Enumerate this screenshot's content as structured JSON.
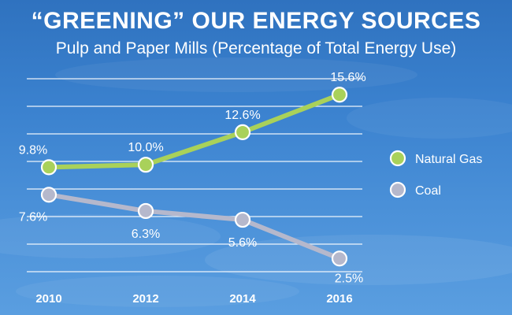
{
  "title": "“GREENING” OUR ENERGY SOURCES",
  "subtitle": "Pulp and Paper Mills  (Percentage of Total Energy Use)",
  "colors": {
    "natural_gas": "#a9d15a",
    "coal": "#b5b8cc",
    "grid": "#ffffff"
  },
  "chart_data": {
    "type": "line",
    "title": "“GREENING” OUR ENERGY SOURCES",
    "subtitle": "Pulp and Paper Mills  (Percentage of Total Energy Use)",
    "x": [
      "2010",
      "2012",
      "2014",
      "2016"
    ],
    "ylim": [
      0,
      17
    ],
    "grid": true,
    "legend_position": "right",
    "series": [
      {
        "name": "Natural Gas",
        "values": [
          9.8,
          10.0,
          12.6,
          15.6
        ],
        "labels": [
          "9.8%",
          "10.0%",
          "12.6%",
          "15.6%"
        ]
      },
      {
        "name": "Coal",
        "values": [
          7.6,
          6.3,
          5.6,
          2.5
        ],
        "labels": [
          "7.6%",
          "6.3%",
          "5.6%",
          "2.5%"
        ]
      }
    ]
  }
}
